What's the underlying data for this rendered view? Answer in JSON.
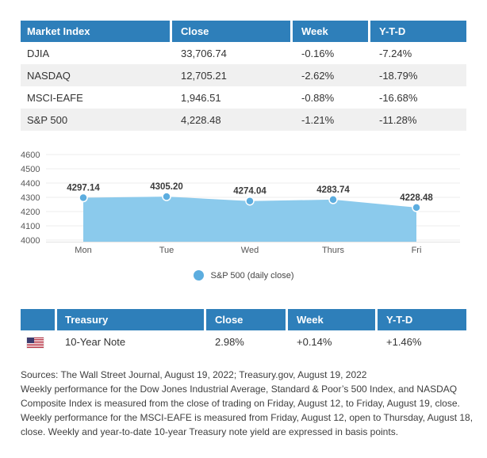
{
  "colors": {
    "header_blue": "#2e7fba",
    "row_gray": "#f0f0f0",
    "area_fill": "#8bcaec",
    "marker_blue": "#5caddf",
    "gridline": "#ececec",
    "axis_text": "#595959",
    "data_label_text": "#3a3a3a"
  },
  "market_table": {
    "headers": [
      "Market Index",
      "Close",
      "Week",
      "Y-T-D"
    ],
    "rows": [
      [
        "DJIA",
        "33,706.74",
        "-0.16%",
        "-7.24%"
      ],
      [
        "NASDAQ",
        "12,705.21",
        "-2.62%",
        "-18.79%"
      ],
      [
        "MSCI-EAFE",
        "1,946.51",
        "-0.88%",
        "-16.68%"
      ],
      [
        "S&P 500",
        "4,228.48",
        "-1.21%",
        "-11.28%"
      ]
    ]
  },
  "chart_data": {
    "type": "area",
    "title": "",
    "xlabel": "",
    "ylabel": "",
    "categories": [
      "Mon",
      "Tue",
      "Wed",
      "Thurs",
      "Fri"
    ],
    "series": [
      {
        "name": "S&P 500 (daily close)",
        "values": [
          4297.14,
          4305.2,
          4274.04,
          4283.74,
          4228.48
        ]
      }
    ],
    "value_labels": [
      "4297.14",
      "4305.20",
      "4274.04",
      "4283.74",
      "4228.48"
    ],
    "yticks": [
      4600,
      4500,
      4400,
      4300,
      4200,
      4100,
      4000
    ],
    "ylim": [
      4000,
      4600
    ],
    "grid": true,
    "legend_position": "bottom",
    "legend_label": "S&P 500 (daily close)"
  },
  "treasury_table": {
    "headers": [
      "",
      "Treasury",
      "Close",
      "Week",
      "Y-T-D"
    ],
    "flag_icon": "us-flag",
    "rows": [
      [
        "10-Year Note",
        "2.98%",
        "+0.14%",
        "+1.46%"
      ]
    ]
  },
  "footnotes": {
    "lines": [
      "Sources: The Wall Street Journal, August 19, 2022; Treasury.gov, August 19, 2022",
      "Weekly performance for the Dow Jones Industrial Average, Standard & Poor’s 500 Index, and NASDAQ",
      "Composite Index is measured from the close of trading on Friday, August 12, to Friday, August 19, close.",
      "Weekly performance for the MSCI-EAFE is measured from Friday, August 12, open to Thursday, August 18,",
      "close. Weekly and year-to-date 10-year Treasury note yield are expressed in basis points."
    ]
  }
}
